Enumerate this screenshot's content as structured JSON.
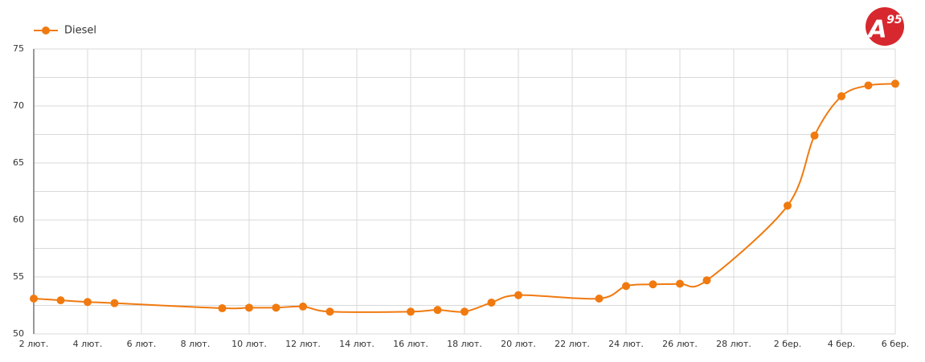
{
  "chart_data": {
    "type": "line",
    "logo": {
      "letter": "A",
      "sup": "95"
    },
    "xticks": [
      "2 лют.",
      "4 лют.",
      "6 лют.",
      "8 лют.",
      "10 лют.",
      "12 лют.",
      "14 лют.",
      "16 лют.",
      "18 лют.",
      "20 лют.",
      "22 лют.",
      "24 лют.",
      "26 лют.",
      "28 лют.",
      "2 бер.",
      "4 бер.",
      "6 бер."
    ],
    "x": [
      "2 лют.",
      "3 лют.",
      "4 лют.",
      "5 лют.",
      "9 лют.",
      "10 лют.",
      "11 лют.",
      "12 лют.",
      "13 лют.",
      "16 лют.",
      "17 лют.",
      "18 лют.",
      "19 лют.",
      "20 лют.",
      "23 лют.",
      "24 лют.",
      "25 лют.",
      "26 лют.",
      "27 лют.",
      "2 бер.",
      "3 бер.",
      "4 бер.",
      "5 бер.",
      "6 бер."
    ],
    "series": [
      {
        "name": "Diesel",
        "color": "#f07a10",
        "values": [
          53.1,
          52.95,
          52.8,
          52.7,
          52.25,
          52.3,
          52.3,
          52.4,
          51.95,
          51.95,
          52.1,
          51.95,
          52.75,
          53.4,
          53.1,
          54.2,
          54.35,
          54.4,
          54.7,
          61.25,
          67.4,
          70.85,
          71.8,
          71.95
        ]
      }
    ],
    "ylim": [
      50,
      75
    ],
    "yticks": [
      50,
      55,
      60,
      65,
      70,
      75
    ],
    "yminor": [
      52.5,
      57.5,
      62.5,
      67.5,
      72.5
    ],
    "grid": true,
    "legend": "top-left"
  }
}
